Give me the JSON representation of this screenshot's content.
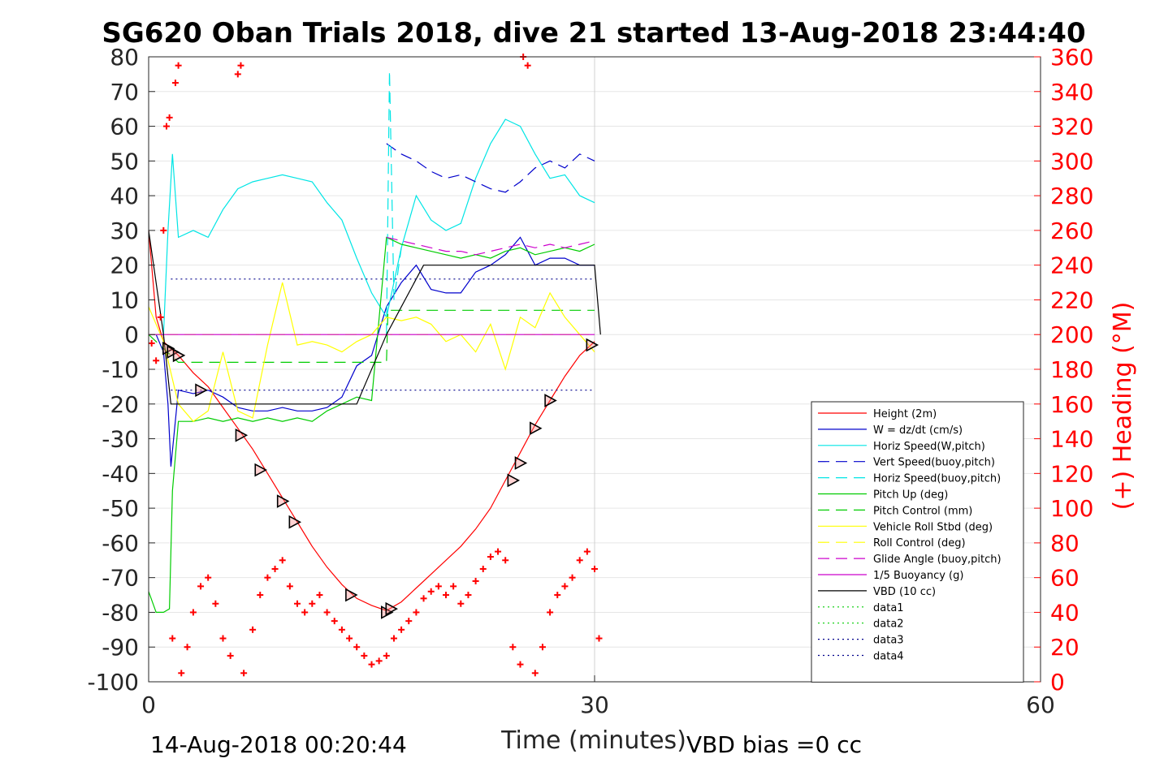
{
  "chart_data": {
    "type": "line",
    "title": "SG620 Oban Trials 2018, dive 21 started 13-Aug-2018 23:44:40",
    "xlabel": "Time (minutes)",
    "ylabel_right": "(+) Heading (°M)",
    "xlim": [
      0,
      60
    ],
    "ylim_left": [
      -100,
      80
    ],
    "ylim_right": [
      0,
      360
    ],
    "x_ticks": [
      0,
      30,
      60
    ],
    "y_ticks_left": [
      80,
      70,
      60,
      50,
      40,
      30,
      20,
      10,
      0,
      -10,
      -20,
      -30,
      -40,
      -50,
      -60,
      -70,
      -80,
      -90,
      -100
    ],
    "y_ticks_right": [
      360,
      340,
      320,
      300,
      280,
      260,
      240,
      220,
      200,
      180,
      160,
      140,
      120,
      100,
      80,
      60,
      40,
      20,
      0
    ],
    "vertical_line_x": 30,
    "grid": true,
    "legend_position": "right",
    "footer_left": "14-Aug-2018 00:20:44",
    "footer_right": "VBD bias =0 cc",
    "series": [
      {
        "name": "Height (2m)",
        "color": "#ff0000",
        "style": "solid",
        "x": [
          0,
          0.5,
          1,
          1.5,
          2,
          3,
          4,
          5,
          6,
          7,
          8,
          9,
          10,
          11,
          12,
          13,
          14,
          15,
          16,
          17,
          18,
          19,
          20,
          21,
          22,
          23,
          24,
          25,
          26,
          27,
          28,
          29,
          30
        ],
        "y": [
          30,
          5,
          -2,
          -4,
          -6,
          -11,
          -15,
          -21,
          -27,
          -33,
          -40,
          -47,
          -54,
          -61,
          -67,
          -72,
          -76,
          -78,
          -79.5,
          -77,
          -73,
          -69,
          -65,
          -61,
          -56,
          -50,
          -42,
          -34,
          -26,
          -19,
          -12,
          -6,
          -2
        ]
      },
      {
        "name": "W = dz/dt (cm/s)",
        "color": "#0000cc",
        "style": "solid",
        "x": [
          0,
          0.5,
          1,
          1.3,
          1.5,
          2,
          3,
          4,
          5,
          6,
          7,
          8,
          9,
          10,
          11,
          12,
          13,
          14,
          15,
          16,
          17,
          18,
          19,
          20,
          21,
          22,
          23,
          24,
          25,
          26,
          27,
          28,
          29,
          30
        ],
        "y": [
          0,
          0,
          -5,
          -20,
          -38,
          -16,
          -17,
          -16,
          -18,
          -21,
          -22,
          -22,
          -21,
          -22,
          -22,
          -21,
          -18,
          -9,
          -6,
          8,
          15,
          20,
          13,
          12,
          12,
          18,
          20,
          23,
          28,
          20,
          22,
          22,
          20,
          20
        ]
      },
      {
        "name": "Horiz Speed(W,pitch)",
        "color": "#00e5e5",
        "style": "solid",
        "x": [
          0,
          0.5,
          1,
          1.3,
          1.6,
          2,
          3,
          4,
          5,
          6,
          7,
          8,
          9,
          10,
          11,
          12,
          13,
          14,
          15,
          16,
          17,
          18,
          19,
          20,
          21,
          22,
          23,
          24,
          25,
          26,
          27,
          28,
          29,
          30
        ],
        "y": [
          0,
          0,
          0,
          30,
          52,
          28,
          30,
          28,
          36,
          42,
          44,
          45,
          46,
          45,
          44,
          38,
          33,
          22,
          12,
          5,
          25,
          40,
          33,
          30,
          32,
          45,
          55,
          62,
          60,
          52,
          45,
          46,
          40,
          38
        ]
      },
      {
        "name": "Vert Speed(buoy,pitch)",
        "color": "#0000cc",
        "style": "dashed",
        "x": [
          16,
          17,
          18,
          19,
          20,
          21,
          22,
          23,
          24,
          25,
          26,
          27,
          28,
          29,
          30
        ],
        "y": [
          55,
          52,
          50,
          47,
          45,
          46,
          44,
          42,
          41,
          44,
          48,
          50,
          48,
          52,
          50
        ]
      },
      {
        "name": "Horiz Speed(buoy,pitch)",
        "color": "#00e5e5",
        "style": "dashed",
        "x": [
          16,
          16.2,
          16.5,
          17
        ],
        "y": [
          0,
          76,
          10,
          25
        ]
      },
      {
        "name": "Pitch Up (deg)",
        "color": "#00cc00",
        "style": "solid",
        "x": [
          0,
          0.5,
          1,
          1.4,
          1.6,
          2,
          3,
          4,
          5,
          6,
          7,
          8,
          9,
          10,
          11,
          12,
          13,
          14,
          15,
          16,
          17,
          18,
          19,
          20,
          21,
          22,
          23,
          24,
          25,
          26,
          27,
          28,
          29,
          30
        ],
        "y": [
          -74,
          -80,
          -80,
          -79,
          -45,
          -25,
          -25,
          -24,
          -25,
          -24,
          -25,
          -24,
          -25,
          -24,
          -25,
          -22,
          -20,
          -18,
          -19,
          28,
          26,
          25,
          24,
          23,
          22,
          23,
          22,
          24,
          25,
          23,
          24,
          25,
          24,
          26
        ]
      },
      {
        "name": "Pitch Control (mm)",
        "color": "#00cc00",
        "style": "dashed",
        "x": [
          0,
          2,
          14,
          16,
          16.1,
          30
        ],
        "y": [
          0,
          -8,
          -8,
          -8,
          7,
          7
        ]
      },
      {
        "name": "Vehicle Roll Stbd (deg)",
        "color": "#ffff00",
        "style": "solid",
        "x": [
          0,
          1,
          2,
          3,
          4,
          5,
          6,
          7,
          8,
          9,
          10,
          11,
          12,
          13,
          14,
          15,
          16,
          17,
          18,
          19,
          20,
          21,
          22,
          23,
          24,
          25,
          26,
          27,
          28,
          29,
          30
        ],
        "y": [
          8,
          -2,
          -20,
          -25,
          -22,
          -5,
          -22,
          -24,
          -3,
          15,
          -3,
          -2,
          -3,
          -5,
          -2,
          0,
          5,
          4,
          5,
          3,
          -2,
          0,
          -5,
          3,
          -10,
          5,
          2,
          12,
          5,
          0,
          -5
        ]
      },
      {
        "name": "Roll Control (deg)",
        "color": "#ffff00",
        "style": "dashed",
        "x": [
          0,
          30
        ],
        "y": [
          0,
          0
        ]
      },
      {
        "name": "Glide Angle (buoy,pitch)",
        "color": "#cc00cc",
        "style": "dashed",
        "x": [
          16,
          17,
          18,
          19,
          20,
          21,
          22,
          23,
          24,
          25,
          26,
          27,
          28,
          29,
          30
        ],
        "y": [
          28,
          27,
          26,
          25,
          24,
          24,
          23,
          24,
          25,
          26,
          25,
          26,
          25,
          26,
          27
        ]
      },
      {
        "name": "1/5 Buoyancy (g)",
        "color": "#cc00cc",
        "style": "solid",
        "x": [
          0,
          30
        ],
        "y": [
          0,
          0
        ]
      },
      {
        "name": "VBD (10 cc)",
        "color": "#000000",
        "style": "solid",
        "x": [
          0,
          1,
          1.5,
          14,
          16,
          18.5,
          30,
          30.4
        ],
        "y": [
          30,
          0,
          -20,
          -20,
          0,
          20,
          20,
          0
        ]
      },
      {
        "name": "data1",
        "color": "#00cc00",
        "style": "dotted",
        "x": [],
        "y": []
      },
      {
        "name": "data2",
        "color": "#00cc00",
        "style": "dotted",
        "x": [],
        "y": []
      },
      {
        "name": "data3",
        "color": "#00008b",
        "style": "dotted",
        "x": [
          1.5,
          30
        ],
        "y": [
          16,
          16
        ]
      },
      {
        "name": "data4",
        "color": "#00008b",
        "style": "dotted",
        "x": [
          1.5,
          30
        ],
        "y": [
          -16,
          -16
        ]
      }
    ],
    "heading_points": {
      "axis": "right",
      "color": "#ff0000",
      "marker": "+",
      "x": [
        0.2,
        0.5,
        0.8,
        1.0,
        1.2,
        1.4,
        1.6,
        1.8,
        2.0,
        2.2,
        2.6,
        3.0,
        3.5,
        4.0,
        4.5,
        5.0,
        5.5,
        6.0,
        6.2,
        6.4,
        7.0,
        7.5,
        8.0,
        8.5,
        9.0,
        9.5,
        10.0,
        10.5,
        11.0,
        11.5,
        12.0,
        12.5,
        13.0,
        13.5,
        14.0,
        14.5,
        15.0,
        15.5,
        16.0,
        16.5,
        17.0,
        17.5,
        18.0,
        18.5,
        19.0,
        19.5,
        20.0,
        20.5,
        21.0,
        21.5,
        22.0,
        22.5,
        23.0,
        23.5,
        24.0,
        24.5,
        25.0,
        25.2,
        25.5,
        26.0,
        26.5,
        27.0,
        27.5,
        28.0,
        28.5,
        29.0,
        29.5,
        30.0,
        30.3
      ],
      "y": [
        195,
        185,
        210,
        260,
        320,
        325,
        25,
        345,
        355,
        5,
        20,
        40,
        55,
        60,
        45,
        25,
        15,
        350,
        355,
        5,
        30,
        50,
        60,
        65,
        70,
        55,
        45,
        40,
        45,
        50,
        40,
        35,
        30,
        25,
        20,
        15,
        10,
        12,
        15,
        25,
        30,
        35,
        40,
        48,
        52,
        55,
        50,
        55,
        45,
        50,
        58,
        65,
        72,
        75,
        70,
        20,
        10,
        360,
        355,
        5,
        20,
        40,
        50,
        55,
        60,
        70,
        75,
        65,
        25
      ]
    },
    "markers": {
      "shape": "triangle-right",
      "color": "#000000",
      "edge": "#ff8080",
      "x": [
        1.3,
        1.6,
        2.0,
        3.5,
        6.2,
        7.5,
        9.0,
        9.8,
        13.6,
        16.0,
        16.3,
        24.5,
        25.0,
        26.0,
        27.0,
        29.8
      ],
      "y": [
        -4,
        -5,
        -6,
        -16,
        -29,
        -39,
        -48,
        -54,
        -75,
        -80,
        -79,
        -42,
        -37,
        -27,
        -19,
        -3
      ]
    }
  }
}
